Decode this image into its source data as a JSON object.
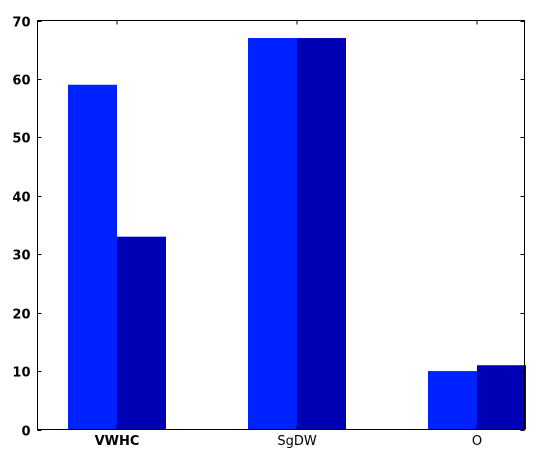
{
  "chart_data": {
    "type": "bar",
    "categories": [
      "VWHC",
      "SgDW",
      "O"
    ],
    "bold_categories": [
      "VWHC"
    ],
    "series": [
      {
        "values": [
          59,
          67,
          10
        ],
        "color": "#0022ff"
      },
      {
        "values": [
          33,
          67,
          11
        ],
        "color": "#0000b4"
      }
    ],
    "ylim": [
      0,
      70
    ],
    "yticks": [
      "0",
      "10",
      "20",
      "30",
      "40",
      "50",
      "60",
      "70"
    ],
    "grid": false,
    "title": "",
    "xlabel": "",
    "ylabel": ""
  }
}
